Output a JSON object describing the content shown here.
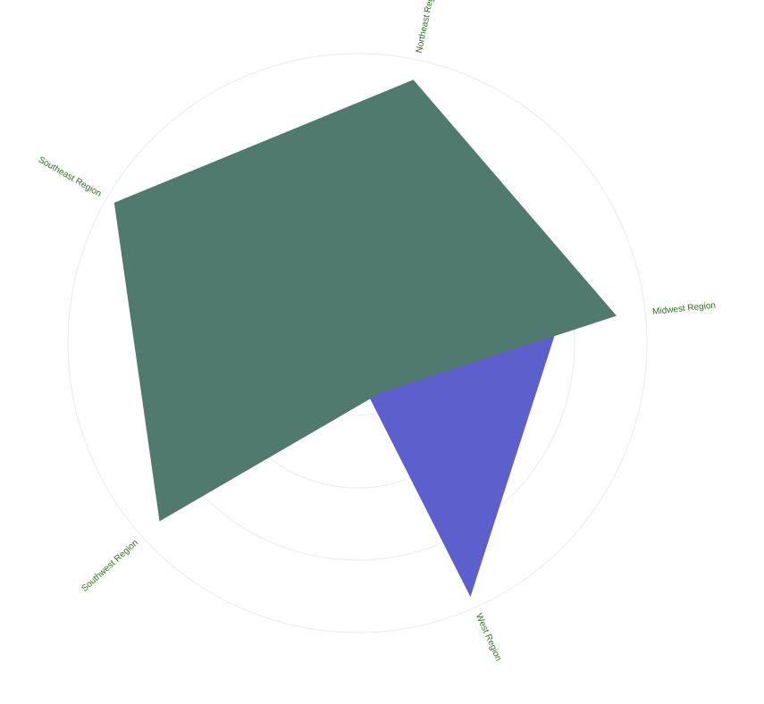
{
  "chart_data": {
    "type": "radar",
    "title": "",
    "categories": [
      "Northeast Region",
      "Midwest Region",
      "West Region",
      "Southwest Region",
      "Southeast Region"
    ],
    "rlim": [
      0,
      100
    ],
    "grid_rings": [
      25,
      50,
      75,
      100
    ],
    "grid": true,
    "series": [
      {
        "values": [
          5,
          70,
          96,
          5,
          5
        ],
        "color": "#5d5fcc"
      },
      {
        "values": [
          93,
          90,
          19,
          92,
          97
        ],
        "color": "#517a6f"
      }
    ],
    "label_color": "#2f6d1f"
  }
}
